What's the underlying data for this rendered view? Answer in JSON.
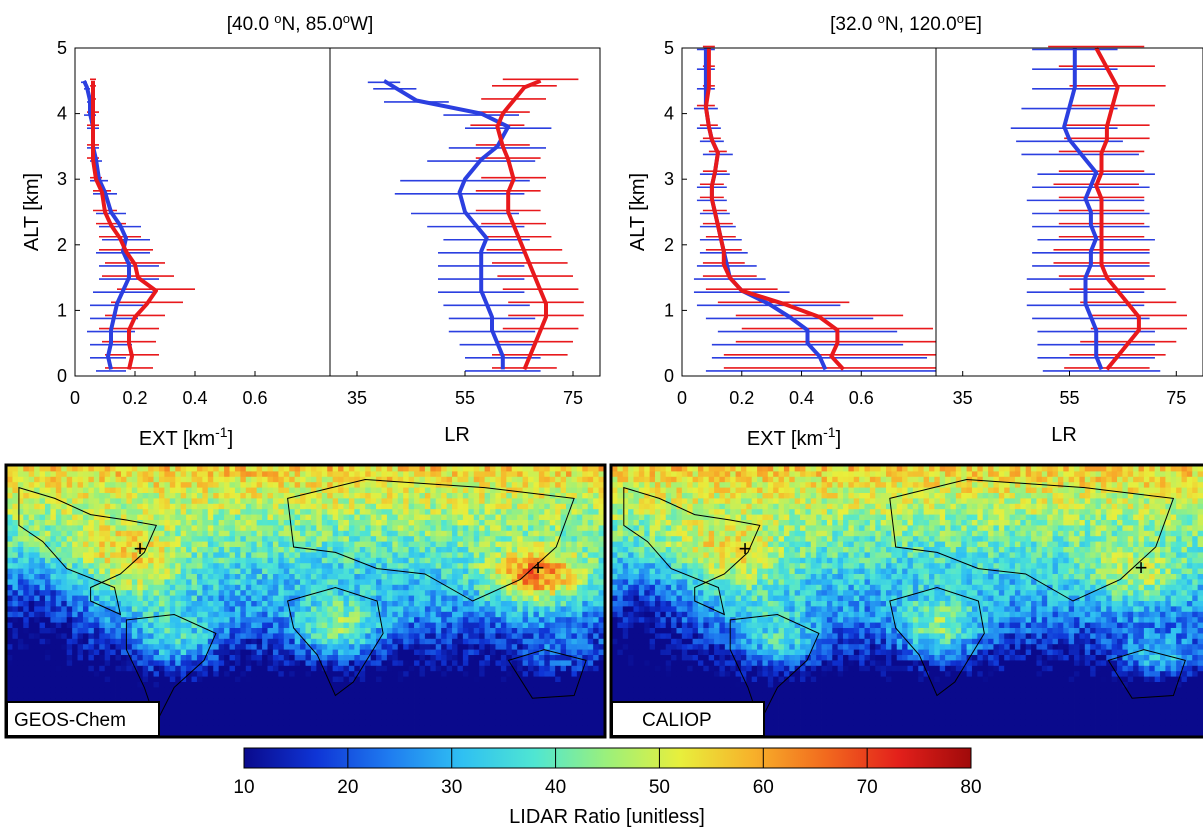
{
  "colors": {
    "geos_chem": "#2b3fe0",
    "caliop": "#e8191c",
    "colormap": [
      "#0a0a8c",
      "#0f35d6",
      "#1f7cf0",
      "#2fc0f2",
      "#4fe6d2",
      "#9cf07a",
      "#e8ef3c",
      "#f7b12a",
      "#f26a1e",
      "#e3201b",
      "#a00a0a"
    ]
  },
  "profiles": [
    {
      "title": "[40.0°N, 85.0°W]",
      "title_parts": [
        "[40.0 ",
        "o",
        "N, 85.0",
        "o",
        "W]"
      ],
      "ylabel": "ALT [km]",
      "y_ticks": [
        "0",
        "1",
        "2",
        "3",
        "4",
        "5"
      ],
      "ext_xlabel_parts": [
        "EXT [km",
        "-1",
        "]"
      ],
      "ext_x_ticks": [
        "0",
        "0.2",
        "0.4",
        "0.6"
      ],
      "lr_xlabel": "LR",
      "lr_x_ticks": [
        "35",
        "55",
        "75"
      ]
    },
    {
      "title": "[32.0°N, 120.0°E]",
      "title_parts": [
        "[32.0 ",
        "o",
        "N, 120.0",
        "o",
        "E]"
      ],
      "ylabel": "ALT [km]",
      "y_ticks": [
        "0",
        "1",
        "2",
        "3",
        "4",
        "5"
      ],
      "ext_xlabel_parts": [
        "EXT [km",
        "-1",
        "]"
      ],
      "ext_x_ticks": [
        "0",
        "0.2",
        "0.4",
        "0.6"
      ],
      "lr_xlabel": "LR",
      "lr_x_ticks": [
        "35",
        "55",
        "75"
      ]
    }
  ],
  "maps": [
    {
      "label": "GEOS-Chem",
      "markers": [
        "+",
        "+"
      ]
    },
    {
      "label": "CALIOP",
      "markers": [
        "+",
        "+"
      ]
    }
  ],
  "colorbar": {
    "label": "LIDAR Ratio [unitless]",
    "ticks": [
      "10",
      "20",
      "30",
      "40",
      "50",
      "60",
      "70",
      "80"
    ]
  },
  "chart_data": [
    {
      "type": "line",
      "location": "[40.0°N, 85.0°W]",
      "quantity": "EXT [km-1]",
      "xlim": [
        0,
        0.85
      ],
      "ylim": [
        0,
        5
      ],
      "series": [
        {
          "x": [
            0.12,
            0.11,
            0.12,
            0.12,
            0.13,
            0.14,
            0.16,
            0.18,
            0.18,
            0.16,
            0.17,
            0.15,
            0.12,
            0.1,
            0.08,
            0.07,
            0.06,
            0.06,
            0.05,
            0.05,
            0.04,
            0.03
          ],
          "y": [
            0.1,
            0.3,
            0.5,
            0.7,
            0.9,
            1.1,
            1.3,
            1.5,
            1.7,
            1.9,
            2.1,
            2.3,
            2.5,
            2.8,
            3.0,
            3.3,
            3.5,
            3.8,
            4.0,
            4.2,
            4.4,
            4.5
          ],
          "xerr": [
            0.05,
            0.06,
            0.07,
            0.08,
            0.08,
            0.09,
            0.1,
            0.1,
            0.1,
            0.09,
            0.08,
            0.07,
            0.05,
            0.04,
            0.03,
            0.02,
            0.02,
            0.02,
            0.02,
            0.01,
            0.01,
            0.01
          ]
        },
        {
          "x": [
            0.18,
            0.19,
            0.18,
            0.18,
            0.2,
            0.24,
            0.27,
            0.21,
            0.2,
            0.17,
            0.15,
            0.12,
            0.1,
            0.09,
            0.07,
            0.06,
            0.06,
            0.06,
            0.06,
            0.06,
            0.06,
            0.06
          ],
          "y": [
            0.1,
            0.3,
            0.5,
            0.7,
            0.9,
            1.1,
            1.3,
            1.5,
            1.7,
            1.9,
            2.1,
            2.3,
            2.5,
            2.8,
            3.0,
            3.3,
            3.5,
            3.8,
            4.0,
            4.2,
            4.4,
            4.5
          ],
          "xerr": [
            0.08,
            0.09,
            0.09,
            0.1,
            0.1,
            0.12,
            0.13,
            0.12,
            0.1,
            0.09,
            0.07,
            0.05,
            0.04,
            0.03,
            0.02,
            0.02,
            0.02,
            0.02,
            0.02,
            0.01,
            0.01,
            0.01
          ]
        }
      ]
    },
    {
      "type": "line",
      "location": "[40.0°N, 85.0°W]",
      "quantity": "LR",
      "xlim": [
        30,
        80
      ],
      "ylim": [
        0,
        5
      ],
      "series": [
        {
          "x": [
            62,
            62,
            61,
            60,
            60,
            59,
            58,
            58,
            58,
            58,
            59,
            57,
            55,
            54,
            55,
            58,
            61,
            63,
            58,
            46,
            42,
            40
          ],
          "y": [
            0.1,
            0.3,
            0.5,
            0.7,
            0.9,
            1.1,
            1.3,
            1.5,
            1.7,
            1.9,
            2.1,
            2.3,
            2.5,
            2.8,
            3.0,
            3.3,
            3.5,
            3.8,
            4.0,
            4.2,
            4.4,
            4.5
          ],
          "xerr": [
            7,
            7,
            7,
            8,
            8,
            8,
            8,
            8,
            8,
            8,
            8,
            9,
            10,
            12,
            12,
            10,
            9,
            8,
            7,
            6,
            4,
            3
          ]
        },
        {
          "x": [
            66,
            67,
            68,
            69,
            70,
            70,
            69,
            68,
            67,
            66,
            65,
            64,
            63,
            63,
            64,
            63,
            62,
            61,
            62,
            64,
            66,
            69
          ],
          "y": [
            0.1,
            0.3,
            0.5,
            0.7,
            0.9,
            1.1,
            1.3,
            1.5,
            1.7,
            1.9,
            2.1,
            2.3,
            2.5,
            2.8,
            3.0,
            3.3,
            3.5,
            3.8,
            4.0,
            4.2,
            4.4,
            4.5
          ],
          "xerr": [
            6,
            7,
            7,
            7,
            7,
            7,
            7,
            7,
            7,
            7,
            6,
            6,
            6,
            6,
            6,
            6,
            5,
            5,
            5,
            6,
            6,
            7
          ]
        }
      ]
    },
    {
      "type": "line",
      "location": "[32.0°N, 120.0°E]",
      "quantity": "EXT [km-1]",
      "xlim": [
        0,
        0.85
      ],
      "ylim": [
        0,
        5
      ],
      "series": [
        {
          "x": [
            0.48,
            0.46,
            0.42,
            0.42,
            0.36,
            0.29,
            0.2,
            0.16,
            0.15,
            0.14,
            0.13,
            0.12,
            0.11,
            0.1,
            0.1,
            0.11,
            0.12,
            0.1,
            0.09,
            0.08,
            0.08,
            0.08,
            0.08
          ],
          "y": [
            0.1,
            0.3,
            0.5,
            0.7,
            0.9,
            1.1,
            1.3,
            1.5,
            1.7,
            1.9,
            2.1,
            2.3,
            2.5,
            2.7,
            2.9,
            3.1,
            3.4,
            3.6,
            3.8,
            4.1,
            4.4,
            4.7,
            5.0
          ],
          "xerr": [
            0.4,
            0.36,
            0.32,
            0.3,
            0.28,
            0.24,
            0.16,
            0.12,
            0.1,
            0.08,
            0.07,
            0.06,
            0.05,
            0.05,
            0.05,
            0.05,
            0.05,
            0.04,
            0.04,
            0.04,
            0.03,
            0.03,
            0.03
          ]
        },
        {
          "x": [
            0.54,
            0.5,
            0.52,
            0.52,
            0.46,
            0.34,
            0.2,
            0.16,
            0.14,
            0.14,
            0.13,
            0.12,
            0.11,
            0.1,
            0.1,
            0.11,
            0.12,
            0.1,
            0.09,
            0.08,
            0.09,
            0.09,
            0.09
          ],
          "y": [
            0.1,
            0.3,
            0.5,
            0.7,
            0.9,
            1.1,
            1.3,
            1.5,
            1.7,
            1.9,
            2.1,
            2.3,
            2.5,
            2.7,
            2.9,
            3.1,
            3.4,
            3.6,
            3.8,
            4.1,
            4.4,
            4.7,
            5.0
          ],
          "xerr": [
            0.4,
            0.36,
            0.34,
            0.32,
            0.28,
            0.22,
            0.12,
            0.09,
            0.07,
            0.06,
            0.05,
            0.05,
            0.04,
            0.04,
            0.04,
            0.04,
            0.03,
            0.03,
            0.03,
            0.03,
            0.02,
            0.02,
            0.02
          ]
        }
      ]
    },
    {
      "type": "line",
      "location": "[32.0°N, 120.0°E]",
      "quantity": "LR",
      "xlim": [
        30,
        80
      ],
      "ylim": [
        0,
        5
      ],
      "series": [
        {
          "x": [
            61,
            60,
            60,
            60,
            59,
            58,
            58,
            58,
            59,
            59,
            60,
            59,
            59,
            58,
            59,
            60,
            57,
            55,
            54,
            55,
            56,
            56,
            56
          ],
          "y": [
            0.1,
            0.3,
            0.5,
            0.7,
            0.9,
            1.1,
            1.3,
            1.5,
            1.7,
            1.9,
            2.1,
            2.3,
            2.5,
            2.7,
            2.9,
            3.1,
            3.4,
            3.6,
            3.8,
            4.1,
            4.4,
            4.7,
            5.0
          ],
          "xerr": [
            11,
            11,
            11,
            11,
            11,
            11,
            11,
            11,
            11,
            11,
            11,
            11,
            11,
            11,
            11,
            11,
            11,
            10,
            10,
            9,
            8,
            8,
            8
          ]
        },
        {
          "x": [
            62,
            64,
            66,
            68,
            68,
            66,
            64,
            62,
            61,
            61,
            61,
            61,
            61,
            61,
            60,
            61,
            61,
            62,
            62,
            63,
            64,
            62,
            60
          ],
          "y": [
            0.1,
            0.3,
            0.5,
            0.7,
            0.9,
            1.1,
            1.3,
            1.5,
            1.7,
            1.9,
            2.1,
            2.3,
            2.5,
            2.7,
            2.9,
            3.1,
            3.4,
            3.6,
            3.8,
            4.1,
            4.4,
            4.7,
            5.0
          ],
          "xerr": [
            8,
            9,
            9,
            9,
            9,
            9,
            9,
            9,
            9,
            9,
            8,
            8,
            8,
            8,
            8,
            8,
            8,
            8,
            8,
            8,
            9,
            9,
            9
          ]
        }
      ]
    },
    {
      "type": "heatmap",
      "title": "GEOS-Chem",
      "colorbar_label": "LIDAR Ratio [unitless]",
      "vlim": [
        10,
        80
      ]
    },
    {
      "type": "heatmap",
      "title": "CALIOP",
      "colorbar_label": "LIDAR Ratio [unitless]",
      "vlim": [
        10,
        80
      ]
    }
  ]
}
